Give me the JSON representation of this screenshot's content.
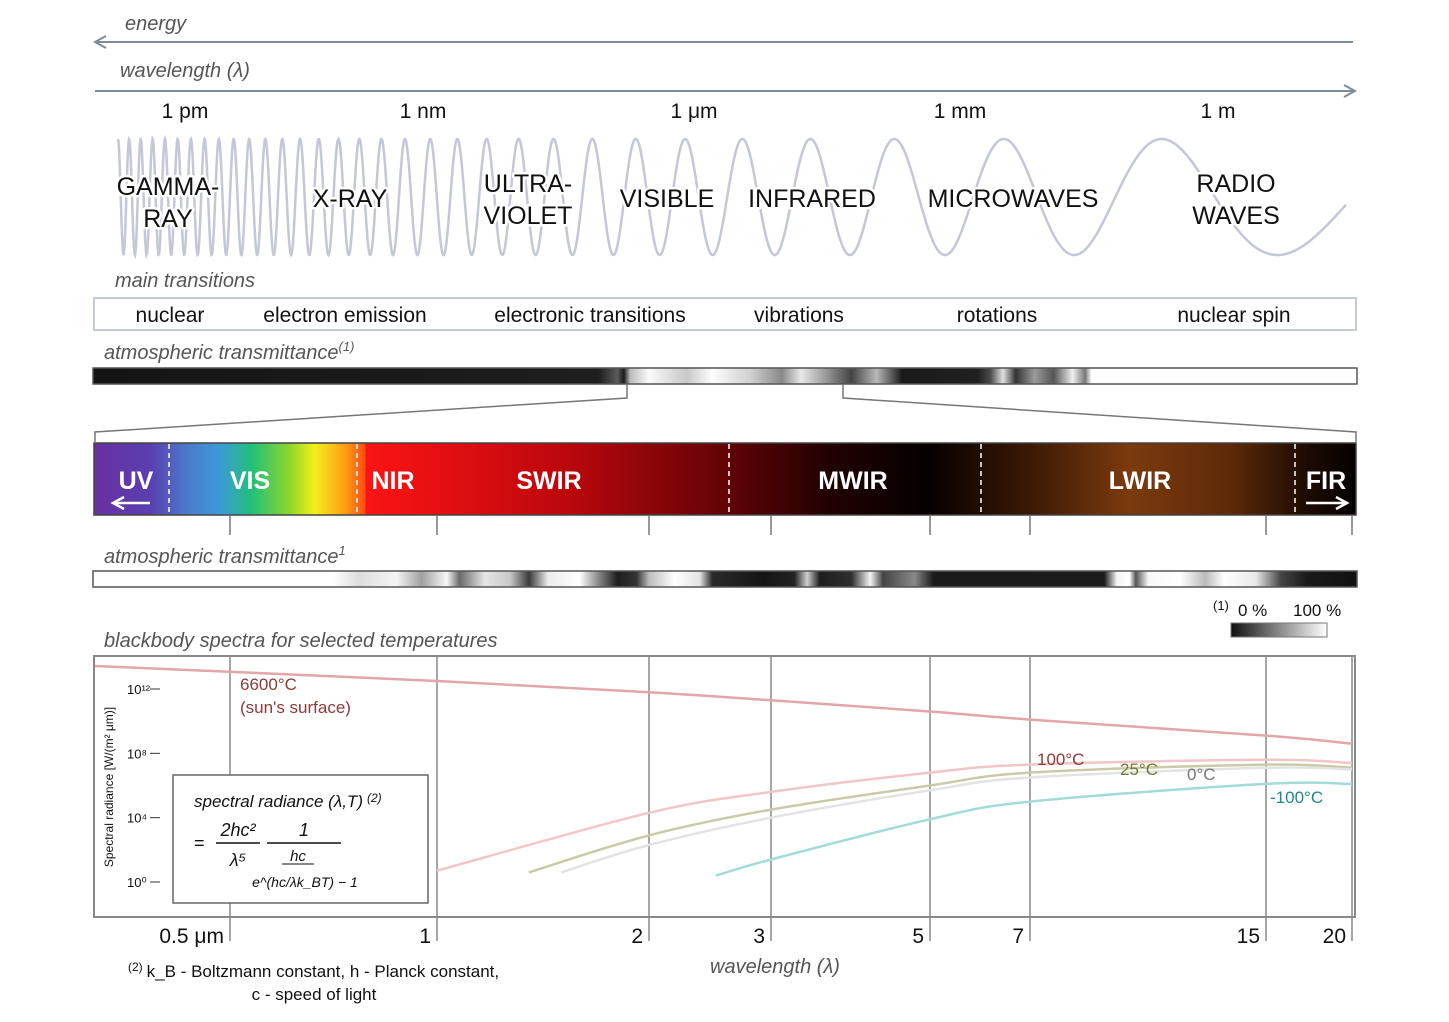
{
  "top": {
    "energy_label": "energy",
    "wavelength_label": "wavelength (λ)",
    "scale_ticks": [
      "1 pm",
      "1 nm",
      "1 μm",
      "1 mm",
      "1 m"
    ],
    "wave_color": "#c3c7d8",
    "bands": [
      {
        "lines": [
          "GAMMA-",
          "RAY"
        ]
      },
      {
        "lines": [
          "X-RAY"
        ]
      },
      {
        "lines": [
          "ULTRA-",
          "VIOLET"
        ]
      },
      {
        "lines": [
          "VISIBLE"
        ]
      },
      {
        "lines": [
          "INFRARED"
        ]
      },
      {
        "lines": [
          "MICROWAVES"
        ]
      },
      {
        "lines": [
          "RADIO",
          "WAVES"
        ]
      }
    ]
  },
  "transitions": {
    "title": "main transitions",
    "items": [
      "nuclear",
      "electron emission",
      "electronic transitions",
      "vibrations",
      "rotations",
      "nuclear spin"
    ]
  },
  "atm1": {
    "title_main": "atmospheric transmittance",
    "title_sup": "(1)"
  },
  "ir_bands": {
    "items": [
      {
        "label": "UV",
        "arrow": "left"
      },
      {
        "label": "VIS"
      },
      {
        "label": "NIR"
      },
      {
        "label": "SWIR"
      },
      {
        "label": "MWIR"
      },
      {
        "label": "LWIR"
      },
      {
        "label": "FIR",
        "arrow": "right"
      }
    ]
  },
  "atm2": {
    "title_main": "atmospheric transmittance",
    "title_sup": "1"
  },
  "legend": {
    "sup": "(1)",
    "min": "0 %",
    "max": "100 %"
  },
  "blackbody": {
    "title": "blackbody spectra for selected temperatures",
    "y_axis_label": "Spectral radiance [W/(m² μm)]",
    "formula": {
      "title": "spectral radiance (λ,T)",
      "title_sup": "(2)",
      "eq": "=",
      "num1": "2hc²",
      "den1": "λ⁵",
      "num2": "1",
      "den2_top": "hc",
      "den2": "e^(hc/λk_BT) − 1"
    },
    "footnote_sup": "(2)",
    "footnote_line1": "k_B - Boltzmann constant, h - Planck constant,",
    "footnote_line2": "c - speed of light",
    "x_axis_label": "wavelength (λ)"
  },
  "chart_data": {
    "type": "line",
    "title": "blackbody spectra for selected temperatures",
    "xlabel": "wavelength (λ)",
    "ylabel": "Spectral radiance [W/(m² μm)]",
    "x_unit": "μm",
    "x_scale": "log",
    "y_scale": "log",
    "x_ticks": [
      0.5,
      1,
      2,
      3,
      5,
      7,
      15,
      20
    ],
    "x_tick_labels": [
      "0.5 μm",
      "1",
      "2",
      "3",
      "5",
      "7",
      "15",
      "20"
    ],
    "y_ticks": [
      0,
      4,
      8,
      12
    ],
    "y_tick_labels": [
      "10⁰",
      "10⁴",
      "10⁸",
      "10¹²"
    ],
    "grid": "vertical",
    "series": [
      {
        "name": "6600°C",
        "sublabel": "(sun's surface)",
        "color": "#e3a6a8",
        "label_color": "#8e3a3a",
        "x": [
          0.5,
          1,
          2,
          3,
          5,
          7,
          15,
          20
        ],
        "y_log10": [
          12.9,
          12.5,
          11.8,
          11.3,
          10.6,
          10.1,
          9.1,
          8.6
        ]
      },
      {
        "name": "100°C",
        "color": "#f2c6c8",
        "label_color": "#8e3a3a",
        "x": [
          1,
          2,
          3,
          5,
          7,
          15,
          20
        ],
        "y_log10": [
          0.7,
          4.3,
          5.6,
          6.8,
          7.3,
          7.6,
          7.4
        ]
      },
      {
        "name": "25°C",
        "color": "#c9cba6",
        "label_color": "#6f7a2a",
        "x": [
          1.35,
          2,
          3,
          5,
          7,
          15,
          20
        ],
        "y_log10": [
          0.6,
          2.9,
          4.5,
          6.0,
          6.8,
          7.3,
          7.1
        ]
      },
      {
        "name": "0°C",
        "color": "#e3e3e3",
        "label_color": "#777777",
        "x": [
          1.5,
          2,
          3,
          5,
          7,
          15,
          20
        ],
        "y_log10": [
          0.6,
          2.3,
          4.0,
          5.7,
          6.5,
          7.1,
          7.0
        ]
      },
      {
        "name": "-100°C",
        "color": "#a3dbd8",
        "label_color": "#1e8a82",
        "x": [
          2.5,
          3,
          5,
          7,
          15,
          20
        ],
        "y_log10": [
          0.4,
          1.4,
          3.9,
          5.0,
          6.1,
          6.1
        ]
      }
    ]
  }
}
